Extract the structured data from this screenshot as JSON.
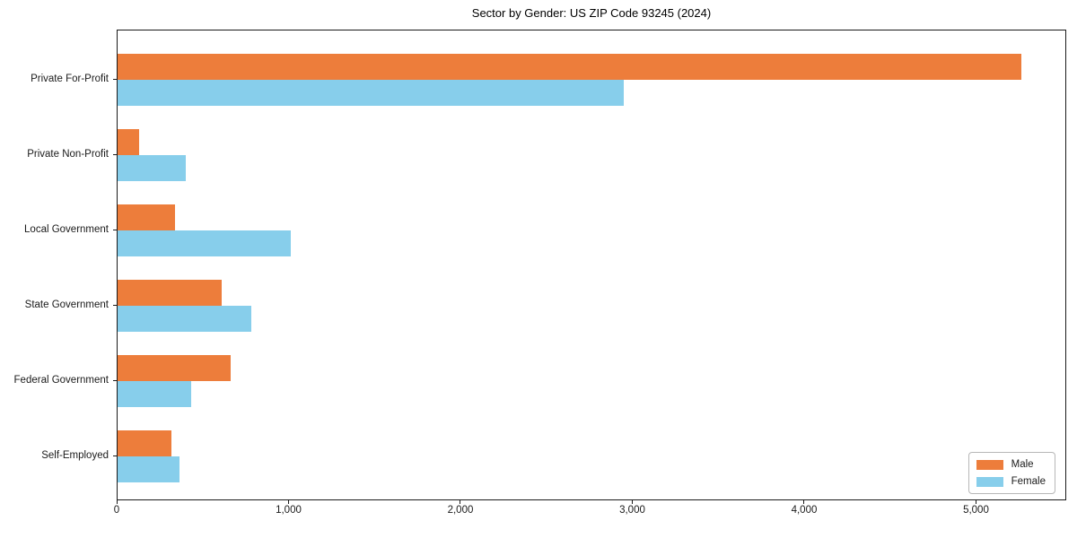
{
  "title": "Sector by Gender: US ZIP Code 93245 (2024)",
  "chart_data": {
    "type": "bar",
    "orientation": "horizontal",
    "title": "Sector by Gender: US ZIP Code 93245 (2024)",
    "categories": [
      "Private For-Profit",
      "Private Non-Profit",
      "Local Government",
      "State Government",
      "Federal Government",
      "Self-Employed"
    ],
    "series": [
      {
        "name": "Male",
        "color": "#ED7D3B",
        "values": [
          5258,
          127,
          334,
          605,
          657,
          313
        ]
      },
      {
        "name": "Female",
        "color": "#87CEEB",
        "values": [
          2946,
          397,
          1009,
          780,
          430,
          360
        ]
      }
    ],
    "xlabel": "",
    "ylabel": "",
    "xlim": [
      0,
      5525
    ],
    "xticks": [
      0,
      1000,
      2000,
      3000,
      4000,
      5000
    ],
    "xtick_labels": [
      "0",
      "1,000",
      "2,000",
      "3,000",
      "4,000",
      "5,000"
    ],
    "grid": false,
    "legend": {
      "position": "lower right"
    }
  },
  "colors": {
    "male": "#ED7D3B",
    "female": "#87CEEB",
    "spine": "#1a1a1a",
    "background": "#ffffff",
    "legend_border": "#b7b7b7"
  }
}
